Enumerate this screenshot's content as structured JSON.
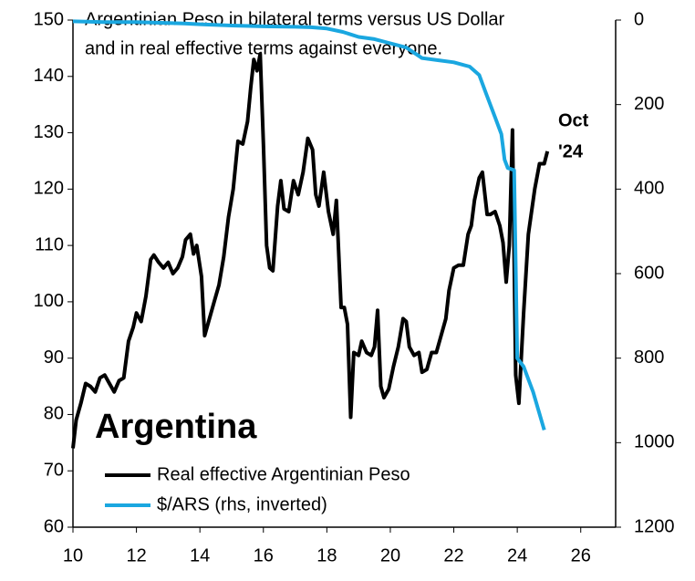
{
  "chart_data": {
    "type": "line",
    "title": [
      "Argentinian Peso in bilateral terms versus US Dollar",
      "and in real effective terms against everyone."
    ],
    "label": "Argentina",
    "annotation": [
      "Oct",
      "'24"
    ],
    "xlim": [
      10,
      27.1
    ],
    "xticks": [
      10,
      12,
      14,
      16,
      18,
      20,
      22,
      24,
      26
    ],
    "ylim": [
      60,
      150
    ],
    "yticks": [
      60,
      70,
      80,
      90,
      100,
      110,
      120,
      130,
      140,
      150
    ],
    "y2lim": [
      1200,
      0
    ],
    "y2ticks": [
      0,
      200,
      400,
      600,
      800,
      1000,
      1200
    ],
    "series": [
      {
        "name": "Real effective Argentinian Peso",
        "color": "#000000",
        "x": [
          10.0,
          10.1,
          10.25,
          10.4,
          10.55,
          10.7,
          10.85,
          11.0,
          11.15,
          11.3,
          11.45,
          11.6,
          11.75,
          11.9,
          12.0,
          12.15,
          12.3,
          12.45,
          12.55,
          12.7,
          12.85,
          13.0,
          13.15,
          13.3,
          13.45,
          13.55,
          13.7,
          13.8,
          13.9,
          14.05,
          14.1,
          14.15,
          14.3,
          14.45,
          14.6,
          14.75,
          14.9,
          15.05,
          15.2,
          15.35,
          15.5,
          15.6,
          15.7,
          15.8,
          15.9,
          16.0,
          16.1,
          16.2,
          16.3,
          16.45,
          16.55,
          16.65,
          16.8,
          16.95,
          17.1,
          17.25,
          17.4,
          17.55,
          17.65,
          17.75,
          17.9,
          18.05,
          18.2,
          18.3,
          18.45,
          18.55,
          18.65,
          18.75,
          18.85,
          19.0,
          19.1,
          19.25,
          19.4,
          19.5,
          19.6,
          19.7,
          19.8,
          19.95,
          20.1,
          20.25,
          20.4,
          20.5,
          20.6,
          20.75,
          20.9,
          21.0,
          21.15,
          21.3,
          21.45,
          21.6,
          21.75,
          21.85,
          22.0,
          22.15,
          22.3,
          22.45,
          22.55,
          22.65,
          22.8,
          22.9,
          23.05,
          23.15,
          23.3,
          23.45,
          23.55,
          23.65,
          23.75,
          23.85,
          23.95,
          24.05,
          24.2,
          24.35,
          24.55,
          24.7,
          24.85,
          24.95
        ],
        "values": [
          74,
          79,
          82,
          85.5,
          85,
          84,
          86.5,
          87,
          85.5,
          84,
          86,
          86.5,
          93,
          95.5,
          98,
          96.5,
          101,
          107.5,
          108.3,
          107,
          106,
          107,
          105,
          106,
          108,
          111,
          112,
          108.5,
          110,
          104.5,
          99,
          94,
          97,
          100,
          103,
          108,
          115,
          120,
          128.5,
          128,
          132,
          138,
          143,
          141,
          144,
          128,
          110,
          106,
          105.5,
          117,
          121.5,
          116.5,
          116,
          121.5,
          119,
          123,
          129,
          127,
          119,
          117,
          123,
          116,
          112,
          118,
          99,
          99,
          96,
          79.5,
          91,
          90.5,
          93,
          91,
          90.5,
          92,
          98.5,
          85,
          83,
          84.5,
          88.5,
          92,
          97,
          96.5,
          92,
          90.5,
          91,
          87.5,
          88,
          91,
          91,
          94,
          97,
          102,
          106,
          106.5,
          106.5,
          112,
          113.5,
          118,
          122,
          123,
          115.5,
          115.5,
          116,
          113.5,
          110.5,
          103.5,
          110,
          130.5,
          87,
          82,
          98,
          112,
          120,
          124.5,
          124.5,
          126.7
        ]
      },
      {
        "name": "$/ARS (rhs, inverted)",
        "color": "#1aa7e0",
        "axis": "y2",
        "x": [
          10.0,
          11,
          12,
          13,
          13.5,
          14,
          15,
          16,
          17,
          17.5,
          18,
          18.5,
          19,
          19.5,
          20,
          20.5,
          21,
          21.5,
          22,
          22.5,
          22.8,
          23.0,
          23.3,
          23.5,
          23.6,
          23.7,
          23.9,
          24.0,
          24.2,
          24.5,
          24.85
        ],
        "values": [
          3,
          5,
          5,
          7,
          8,
          10,
          13,
          15,
          16,
          17,
          20,
          28,
          40,
          45,
          55,
          65,
          90,
          95,
          100,
          110,
          130,
          170,
          230,
          270,
          330,
          350,
          355,
          800,
          820,
          880,
          970
        ]
      }
    ]
  }
}
